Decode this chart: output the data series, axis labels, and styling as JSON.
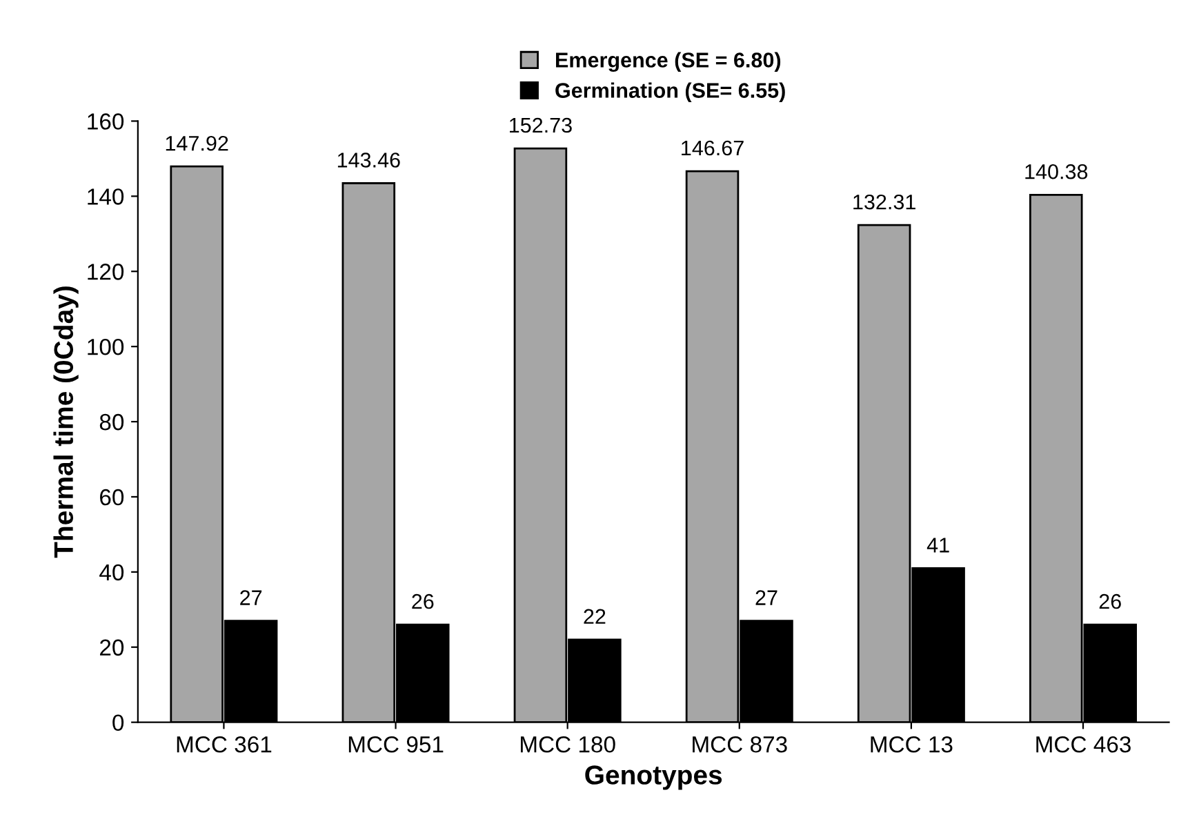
{
  "chart_data": {
    "type": "bar",
    "xlabel": "Genotypes",
    "ylabel": "Thermal time (0Cday)",
    "categories": [
      "MCC 361",
      "MCC 951",
      "MCC 180",
      "MCC 873",
      "MCC 13",
      "MCC 463"
    ],
    "series": [
      {
        "name": "Emergence (SE = 6.80)",
        "color": "#a6a6a6",
        "values": [
          147.92,
          143.46,
          152.73,
          146.67,
          132.31,
          140.38
        ]
      },
      {
        "name": "Germination (SE= 6.55)",
        "color": "#000000",
        "values": [
          27,
          26,
          22,
          27,
          41,
          26
        ]
      }
    ],
    "ylim": [
      0,
      160
    ],
    "yticks": [
      0,
      20,
      40,
      60,
      80,
      100,
      120,
      140,
      160
    ],
    "data_labels": true,
    "legend": "top",
    "grid": false
  }
}
